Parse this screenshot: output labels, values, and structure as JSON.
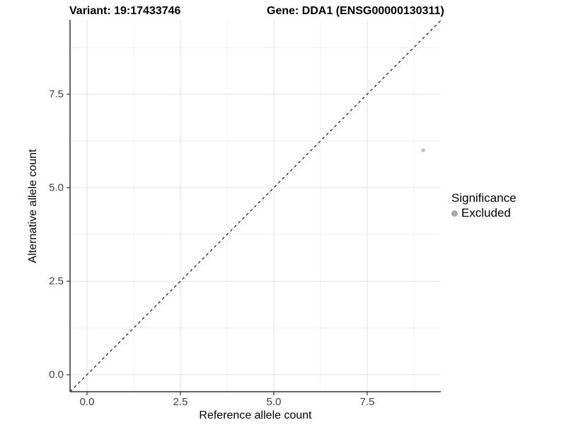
{
  "chart_data": {
    "type": "scatter",
    "title_left": "Variant: 19:17433746",
    "title_right": "Gene: DDA1 (ENSG00000130311)",
    "xlabel": "Reference allele count",
    "ylabel": "Alternative allele count",
    "x_ticks": [
      {
        "value": 0,
        "label": "0.0"
      },
      {
        "value": 2.5,
        "label": "2.5"
      },
      {
        "value": 5,
        "label": "5.0"
      },
      {
        "value": 7.5,
        "label": "7.5"
      }
    ],
    "y_ticks": [
      {
        "value": 0,
        "label": "0.0"
      },
      {
        "value": 2.5,
        "label": "2.5"
      },
      {
        "value": 5,
        "label": "5.0"
      },
      {
        "value": 7.5,
        "label": "7.5"
      }
    ],
    "x_minor_ticks": [
      1.25,
      3.75,
      6.25,
      8.75
    ],
    "y_minor_ticks": [
      1.25,
      3.75,
      6.25,
      8.75
    ],
    "xlim": [
      -0.45,
      9.47
    ],
    "ylim": [
      -0.45,
      9.49
    ],
    "grid": true,
    "identity_line": {
      "equation": "y = x",
      "style": "dashed",
      "color": "#000000"
    },
    "series": [
      {
        "name": "Excluded",
        "color": "#c0c0c0",
        "point_radius": 2.6,
        "points": [
          {
            "x": 9,
            "y": 6
          }
        ]
      }
    ],
    "legend": {
      "position": "right",
      "title": "Significance",
      "items": [
        {
          "label": "Excluded",
          "color": "#a8a8a8"
        }
      ]
    },
    "colors": {
      "grid_major": "#e3e3e3",
      "grid_minor": "#efefef",
      "axis": "#333333",
      "tick_text": "#404040",
      "title_text": "#000000"
    }
  }
}
